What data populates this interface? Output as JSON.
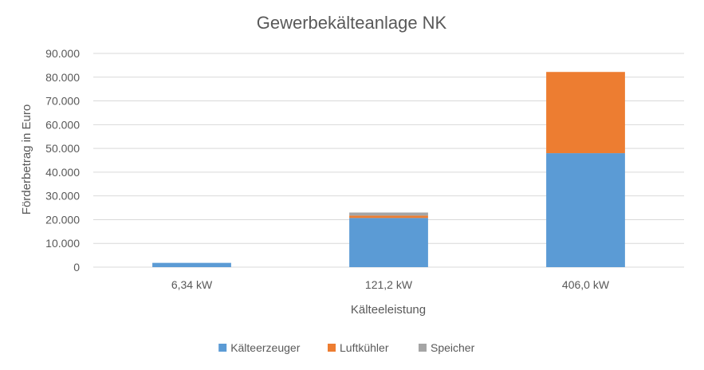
{
  "chart_data": {
    "type": "bar",
    "stacked": true,
    "title": "Gewerbekälteanlage NK",
    "xlabel": "Kälteeleistung",
    "ylabel": "Förderbetrag in Euro",
    "categories": [
      "6,34 kW",
      "121,2 kW",
      "406,0 kW"
    ],
    "ylim": [
      0,
      90000
    ],
    "yticks": [
      0,
      10000,
      20000,
      30000,
      40000,
      50000,
      60000,
      70000,
      80000,
      90000
    ],
    "ytick_labels": [
      "0",
      "10.000",
      "20.000",
      "30.000",
      "40.000",
      "50.000",
      "60.000",
      "70.000",
      "80.000",
      "90.000"
    ],
    "grid": true,
    "legend_position": "bottom",
    "series": [
      {
        "name": "Kälteerzeuger",
        "color": "#5b9bd5",
        "values": [
          1800,
          20700,
          48000
        ]
      },
      {
        "name": "Luftkühler",
        "color": "#ed7d31",
        "values": [
          0,
          1000,
          34200
        ]
      },
      {
        "name": "Speicher",
        "color": "#a5a5a5",
        "values": [
          0,
          1300,
          0
        ]
      }
    ]
  }
}
